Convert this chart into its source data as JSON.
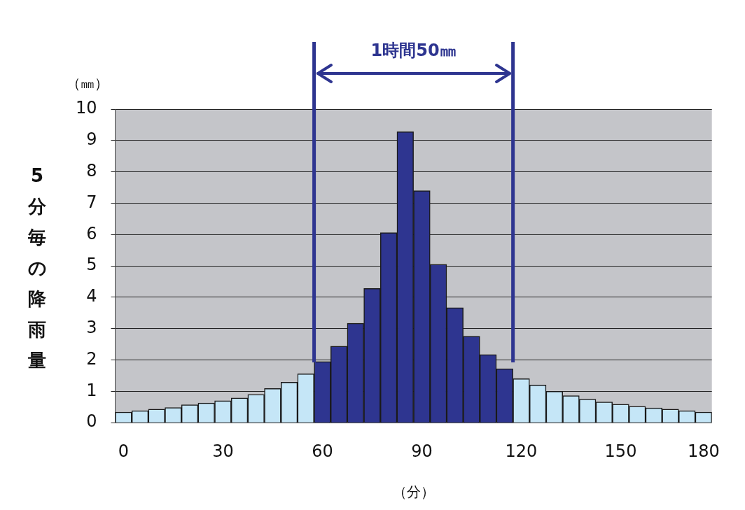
{
  "chart_data": {
    "type": "bar",
    "ylabel": "5分毎の降雨量",
    "xlabel": "（分）",
    "annotations": [
      "1時間50㎜",
      "（㎜）"
    ],
    "categories": [
      "0",
      null,
      null,
      null,
      null,
      null,
      "30",
      null,
      null,
      null,
      null,
      null,
      "60",
      null,
      null,
      null,
      null,
      null,
      "90",
      null,
      null,
      null,
      null,
      null,
      "120",
      null,
      null,
      null,
      null,
      null,
      "150",
      null,
      null,
      null,
      null,
      "180"
    ],
    "values": [
      0.34,
      0.38,
      0.43,
      0.48,
      0.57,
      0.63,
      0.7,
      0.79,
      0.9,
      1.09,
      1.29,
      1.56,
      1.95,
      2.44,
      3.17,
      4.28,
      6.06,
      9.28,
      7.4,
      5.05,
      3.67,
      2.76,
      2.17,
      1.72,
      1.4,
      1.2,
      1.0,
      0.86,
      0.75,
      0.66,
      0.59,
      0.52,
      0.47,
      0.43,
      0.38,
      0.34
    ],
    "colors": [
      "#c5e6f7",
      "#c5e6f7",
      "#c5e6f7",
      "#c5e6f7",
      "#c5e6f7",
      "#c5e6f7",
      "#c5e6f7",
      "#c5e6f7",
      "#c5e6f7",
      "#c5e6f7",
      "#c5e6f7",
      "#c5e6f7",
      "#2e3590",
      "#2e3590",
      "#2e3590",
      "#2e3590",
      "#2e3590",
      "#2e3590",
      "#2e3590",
      "#2e3590",
      "#2e3590",
      "#2e3590",
      "#2e3590",
      "#2e3590",
      "#c5e6f7",
      "#c5e6f7",
      "#c5e6f7",
      "#c5e6f7",
      "#c5e6f7",
      "#c5e6f7",
      "#c5e6f7",
      "#c5e6f7",
      "#c5e6f7",
      "#c5e6f7",
      "#c5e6f7",
      "#c5e6f7"
    ],
    "ylim": [
      0,
      10
    ],
    "yticks": [
      0,
      1,
      2,
      3,
      4,
      5,
      6,
      7,
      8,
      9,
      10
    ],
    "grid": "y",
    "legend": false
  }
}
